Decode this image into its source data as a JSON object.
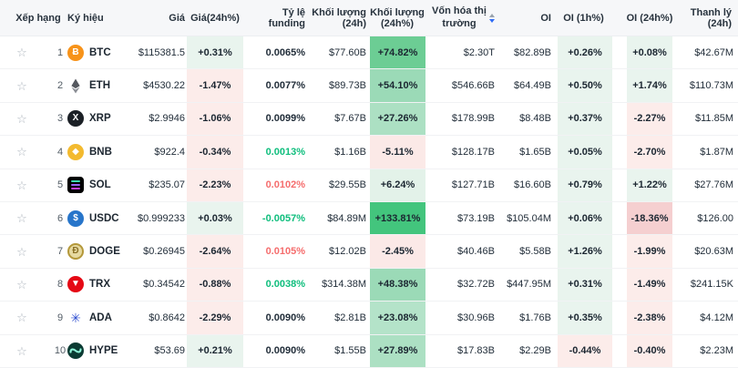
{
  "header": {
    "rank": "Xếp hạng",
    "symbol": "Ký hiệu",
    "price": "Giá",
    "change": "Giá(24h%)",
    "funding": "Tỷ lệ funding",
    "volume": "Khối lượng (24h)",
    "volume_pct": "Khối lượng (24h%)",
    "market_cap": "Vốn hóa thị trường",
    "oi": "OI",
    "oi_1h": "OI (1h%)",
    "oi_24h": "OI (24h%)",
    "liquidation": "Thanh lý (24h)",
    "sorted_column": "market_cap",
    "sort_direction": "desc",
    "sort_active_color": "#2f6cf6"
  },
  "colors": {
    "pos_cell_bg": "#e9f4ee",
    "neg_cell_bg": "#fcecea",
    "funding_green": "#0fbe7d",
    "funding_red": "#f56d6d"
  },
  "rows": [
    {
      "rank": "1",
      "symbol": "BTC",
      "price": "$115381.5",
      "chg": "+0.31%",
      "funding": "0.0065%",
      "fundingColor": "",
      "vol": "$77.60B",
      "volPct": "+74.82%",
      "volBg": "#6ccd94",
      "mcap": "$2.30T",
      "oi": "$82.89B",
      "oi1": "+0.26%",
      "oi24": "+0.08%",
      "liq": "$42.67M",
      "icon": {
        "name": "btc-icon",
        "type": "glyph",
        "bg": "#f7931a",
        "fg": "#ffffff",
        "glyph": "Ƀ"
      }
    },
    {
      "rank": "2",
      "symbol": "ETH",
      "price": "$4530.22",
      "chg": "-1.47%",
      "funding": "0.0077%",
      "fundingColor": "",
      "vol": "$89.73B",
      "volPct": "+54.10%",
      "volBg": "#9bdab7",
      "mcap": "$546.66B",
      "oi": "$64.49B",
      "oi1": "+0.50%",
      "oi24": "+1.74%",
      "liq": "$110.73M",
      "icon": {
        "name": "eth-icon",
        "type": "eth"
      }
    },
    {
      "rank": "3",
      "symbol": "XRP",
      "price": "$2.9946",
      "chg": "-1.06%",
      "funding": "0.0099%",
      "fundingColor": "",
      "vol": "$7.67B",
      "volPct": "+27.26%",
      "volBg": "#ace0c3",
      "mcap": "$178.99B",
      "oi": "$8.48B",
      "oi1": "+0.37%",
      "oi24": "-2.27%",
      "liq": "$11.85M",
      "icon": {
        "name": "xrp-icon",
        "type": "glyph",
        "bg": "#1b2026",
        "fg": "#ffffff",
        "glyph": "X"
      }
    },
    {
      "rank": "4",
      "symbol": "BNB",
      "price": "$922.4",
      "chg": "-0.34%",
      "funding": "0.0013%",
      "fundingColor": "green",
      "vol": "$1.16B",
      "volPct": "-5.11%",
      "volBg": "#fbe9e7",
      "mcap": "$128.17B",
      "oi": "$1.65B",
      "oi1": "+0.05%",
      "oi24": "-2.70%",
      "liq": "$1.87M",
      "icon": {
        "name": "bnb-icon",
        "type": "glyph",
        "bg": "#f3ba2f",
        "fg": "#ffffff",
        "glyph": "◆"
      }
    },
    {
      "rank": "5",
      "symbol": "SOL",
      "price": "$235.07",
      "chg": "-2.23%",
      "funding": "0.0102%",
      "fundingColor": "red",
      "vol": "$29.55B",
      "volPct": "+6.24%",
      "volBg": "#e3f2e9",
      "mcap": "$127.71B",
      "oi": "$16.60B",
      "oi1": "+0.79%",
      "oi24": "+1.22%",
      "liq": "$27.76M",
      "icon": {
        "name": "sol-icon",
        "type": "sol"
      }
    },
    {
      "rank": "6",
      "symbol": "USDC",
      "price": "$0.999233",
      "chg": "+0.03%",
      "funding": "-0.0057%",
      "fundingColor": "green",
      "vol": "$84.89M",
      "volPct": "+133.81%",
      "volBg": "#43c57d",
      "mcap": "$73.19B",
      "oi": "$105.04M",
      "oi1": "+0.06%",
      "oi24": "-18.36%",
      "oi24_bg": "#f5cfd0",
      "liq": "$126.00",
      "icon": {
        "name": "usdc-icon",
        "type": "glyph",
        "bg": "#2775ca",
        "fg": "#ffffff",
        "glyph": "$"
      }
    },
    {
      "rank": "7",
      "symbol": "DOGE",
      "price": "$0.26945",
      "chg": "-2.64%",
      "funding": "0.0105%",
      "fundingColor": "red",
      "vol": "$12.02B",
      "volPct": "-2.45%",
      "volBg": "#fbe9e7",
      "mcap": "$40.46B",
      "oi": "$5.58B",
      "oi1": "+1.26%",
      "oi24": "-1.99%",
      "liq": "$20.63M",
      "icon": {
        "name": "doge-icon",
        "type": "glyph",
        "bg": "#e6d9a0",
        "fg": "#8a7026",
        "glyph": "Ð",
        "border": "2px solid #b4983a"
      }
    },
    {
      "rank": "8",
      "symbol": "TRX",
      "price": "$0.34542",
      "chg": "-0.88%",
      "funding": "0.0038%",
      "fundingColor": "green",
      "vol": "$314.38M",
      "volPct": "+48.38%",
      "volBg": "#9bdab7",
      "mcap": "$32.72B",
      "oi": "$447.95M",
      "oi1": "+0.31%",
      "oi24": "-1.49%",
      "liq": "$241.15K",
      "icon": {
        "name": "trx-icon",
        "type": "glyph",
        "bg": "#e50915",
        "fg": "#ffffff",
        "glyph": "▼"
      }
    },
    {
      "rank": "9",
      "symbol": "ADA",
      "price": "$0.8642",
      "chg": "-2.29%",
      "funding": "0.0090%",
      "fundingColor": "",
      "vol": "$2.81B",
      "volPct": "+23.08%",
      "volBg": "#b4e3c9",
      "mcap": "$30.96B",
      "oi": "$1.76B",
      "oi1": "+0.35%",
      "oi24": "-2.38%",
      "liq": "$4.12M",
      "icon": {
        "name": "ada-icon",
        "type": "glyph",
        "bg": "transparent",
        "fg": "#2f4fd0",
        "glyph": "✳",
        "plain": true
      }
    },
    {
      "rank": "10",
      "symbol": "HYPE",
      "price": "$53.69",
      "chg": "+0.21%",
      "funding": "0.0090%",
      "fundingColor": "",
      "vol": "$1.55B",
      "volPct": "+27.89%",
      "volBg": "#ace0c3",
      "mcap": "$17.83B",
      "oi": "$2.29B",
      "oi1": "-0.44%",
      "oi24": "-0.40%",
      "liq": "$2.23M",
      "icon": {
        "name": "hype-icon",
        "type": "hype"
      }
    }
  ]
}
